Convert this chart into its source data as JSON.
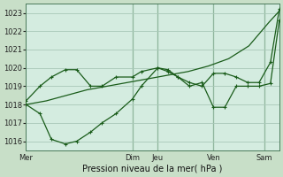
{
  "background_color": "#c8dfc8",
  "plot_bg_color": "#d4ece0",
  "grid_color": "#a8c8b8",
  "line_color": "#1a5c1a",
  "xlabel": "Pression niveau de la mer( hPa )",
  "ylim": [
    1015.5,
    1023.5
  ],
  "yticks": [
    1016,
    1017,
    1018,
    1019,
    1020,
    1021,
    1022,
    1023
  ],
  "day_labels": [
    "Mer",
    "Dim",
    "Jeu",
    "Ven",
    "Sam"
  ],
  "day_positions": [
    0.0,
    0.42,
    0.52,
    0.74,
    0.94
  ],
  "xlim": [
    0.0,
    1.0
  ],
  "line1_x": [
    0.0,
    0.08,
    0.16,
    0.24,
    0.32,
    0.4,
    0.48,
    0.56,
    0.64,
    0.72,
    0.8,
    0.88,
    0.96,
    1.0
  ],
  "line1_y": [
    1018.0,
    1018.2,
    1018.5,
    1018.8,
    1019.0,
    1019.2,
    1019.4,
    1019.6,
    1019.8,
    1020.1,
    1020.5,
    1021.2,
    1022.5,
    1023.1
  ],
  "line2_x": [
    0.0,
    0.055,
    0.1,
    0.155,
    0.2,
    0.255,
    0.3,
    0.355,
    0.42,
    0.455,
    0.52,
    0.56,
    0.6,
    0.645,
    0.695,
    0.74,
    0.785,
    0.83,
    0.875,
    0.92,
    0.965,
    1.0
  ],
  "line2_y": [
    1018.0,
    1017.5,
    1016.1,
    1015.85,
    1016.0,
    1016.5,
    1017.0,
    1017.5,
    1018.3,
    1019.0,
    1020.0,
    1019.8,
    1019.5,
    1019.0,
    1019.2,
    1017.85,
    1017.85,
    1019.0,
    1019.0,
    1019.0,
    1019.15,
    1022.6
  ],
  "line3_x": [
    0.0,
    0.055,
    0.1,
    0.155,
    0.2,
    0.255,
    0.3,
    0.355,
    0.42,
    0.455,
    0.52,
    0.56,
    0.6,
    0.645,
    0.695,
    0.74,
    0.785,
    0.83,
    0.875,
    0.92,
    0.965,
    1.0
  ],
  "line3_y": [
    1018.2,
    1019.0,
    1019.5,
    1019.9,
    1019.9,
    1019.0,
    1019.0,
    1019.5,
    1019.5,
    1019.8,
    1020.0,
    1019.9,
    1019.5,
    1019.2,
    1019.0,
    1019.7,
    1019.7,
    1019.5,
    1019.2,
    1019.2,
    1020.3,
    1023.2
  ]
}
